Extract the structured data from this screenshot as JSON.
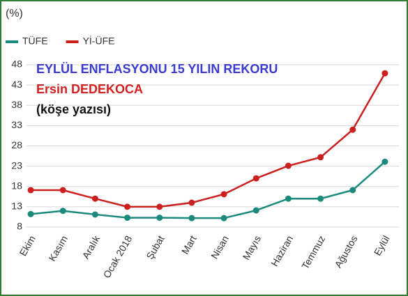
{
  "chart_data": {
    "type": "line",
    "ylabel": "(%)",
    "annotations": [
      "EYLÜL ENFLASYONU 15 YILIN REKORU",
      "Ersin DEDEKOCA",
      "(köşe yazısı)"
    ],
    "categories": [
      "Ekim",
      "Kasım",
      "Aralık",
      "Ocak 2018",
      "Şubat",
      "Mart",
      "Nisan",
      "Mayıs",
      "Haziran",
      "Temmuz",
      "Ağustos",
      "Eylül"
    ],
    "series": [
      {
        "name": "TÜFE",
        "color": "#1b8a7c",
        "values": [
          11.2,
          12.0,
          11.1,
          10.3,
          10.3,
          10.2,
          10.2,
          12.1,
          15.0,
          15.0,
          17.1,
          24.1
        ]
      },
      {
        "name": "Yİ-ÜFE",
        "color": "#cc1f1f",
        "values": [
          17.1,
          17.1,
          15.0,
          13.0,
          13.0,
          14.0,
          16.1,
          20.0,
          23.1,
          25.2,
          32.0,
          45.9
        ]
      }
    ],
    "ylim": [
      8,
      48
    ],
    "yticks": [
      8,
      13,
      18,
      23,
      28,
      33,
      38,
      43,
      48
    ],
    "grid": true
  }
}
